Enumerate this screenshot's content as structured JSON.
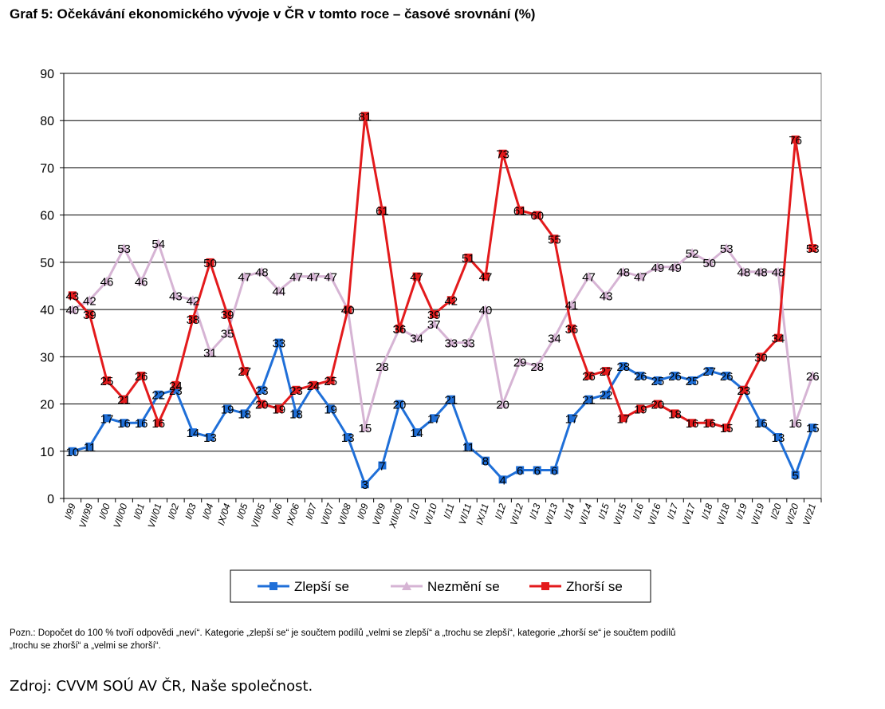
{
  "title": "Graf 5: Očekávání ekonomického vývoje v ČR v tomto roce – časové srovnání (%)",
  "note_line1": "Pozn.: Dopočet do 100 % tvoří odpovědi „neví“. Kategorie „zlepší se“ je součtem podílů „velmi se zlepší“ a „trochu se zlepší“, kategorie „zhorší se“ je součtem podílů",
  "note_line2": "„trochu se zhorší“ a „velmi se zhorší“.",
  "source": "Zdroj: CVVM SOÚ AV ČR, Naše společnost.",
  "chart_data": {
    "type": "line",
    "title": "Graf 5: Očekávání ekonomického vývoje v ČR v tomto roce – časové srovnání (%)",
    "xlabel": "",
    "ylabel": "",
    "ylim": [
      0,
      90
    ],
    "yticks": [
      0,
      10,
      20,
      30,
      40,
      50,
      60,
      70,
      80,
      90
    ],
    "grid": true,
    "legend_position": "bottom",
    "categories": [
      "I/99",
      "VII/99",
      "I/00",
      "VII/00",
      "I/01",
      "VII/01",
      "I/02",
      "I/03",
      "I/04",
      "IX/04",
      "I/05",
      "VII/05",
      "I/06",
      "IX/06",
      "I/07",
      "VI/07",
      "VI/08",
      "I/09",
      "VI/09",
      "XII/09",
      "I/10",
      "VI/10",
      "I/11",
      "VI/11",
      "IX/11",
      "I/12",
      "VI/12",
      "I/13",
      "VI/13",
      "I/14",
      "VI/14",
      "I/15",
      "VI/15",
      "I/16",
      "VI/16",
      "I/17",
      "VI/17",
      "I/18",
      "VI/18",
      "I/19",
      "VI/19",
      "I/20",
      "VI/20",
      "VI/21"
    ],
    "series": [
      {
        "name": "Zlepší se",
        "color": "#1f6fd8",
        "marker": "square",
        "values": [
          10,
          11,
          17,
          16,
          16,
          22,
          23,
          14,
          13,
          19,
          18,
          23,
          33,
          18,
          24,
          19,
          13,
          3,
          7,
          20,
          14,
          17,
          21,
          11,
          8,
          4,
          6,
          6,
          6,
          17,
          21,
          22,
          28,
          26,
          25,
          26,
          25,
          27,
          26,
          23,
          16,
          13,
          5,
          15
        ]
      },
      {
        "name": "Nezmění se",
        "color": "#d6b4d4",
        "marker": "triangle",
        "values": [
          40,
          42,
          46,
          53,
          46,
          54,
          43,
          42,
          31,
          35,
          47,
          48,
          44,
          47,
          47,
          47,
          40,
          15,
          28,
          36,
          34,
          37,
          33,
          33,
          40,
          20,
          29,
          28,
          34,
          41,
          47,
          43,
          48,
          47,
          49,
          49,
          52,
          50,
          53,
          48,
          48,
          48,
          16,
          26
        ]
      },
      {
        "name": "Zhorší se",
        "color": "#e31a1c",
        "marker": "square",
        "values": [
          43,
          39,
          25,
          21,
          26,
          16,
          24,
          38,
          50,
          39,
          27,
          20,
          19,
          23,
          24,
          25,
          40,
          81,
          61,
          36,
          47,
          39,
          42,
          51,
          47,
          73,
          61,
          60,
          55,
          36,
          26,
          27,
          17,
          19,
          20,
          18,
          16,
          16,
          15,
          23,
          30,
          34,
          76,
          53
        ]
      }
    ]
  }
}
